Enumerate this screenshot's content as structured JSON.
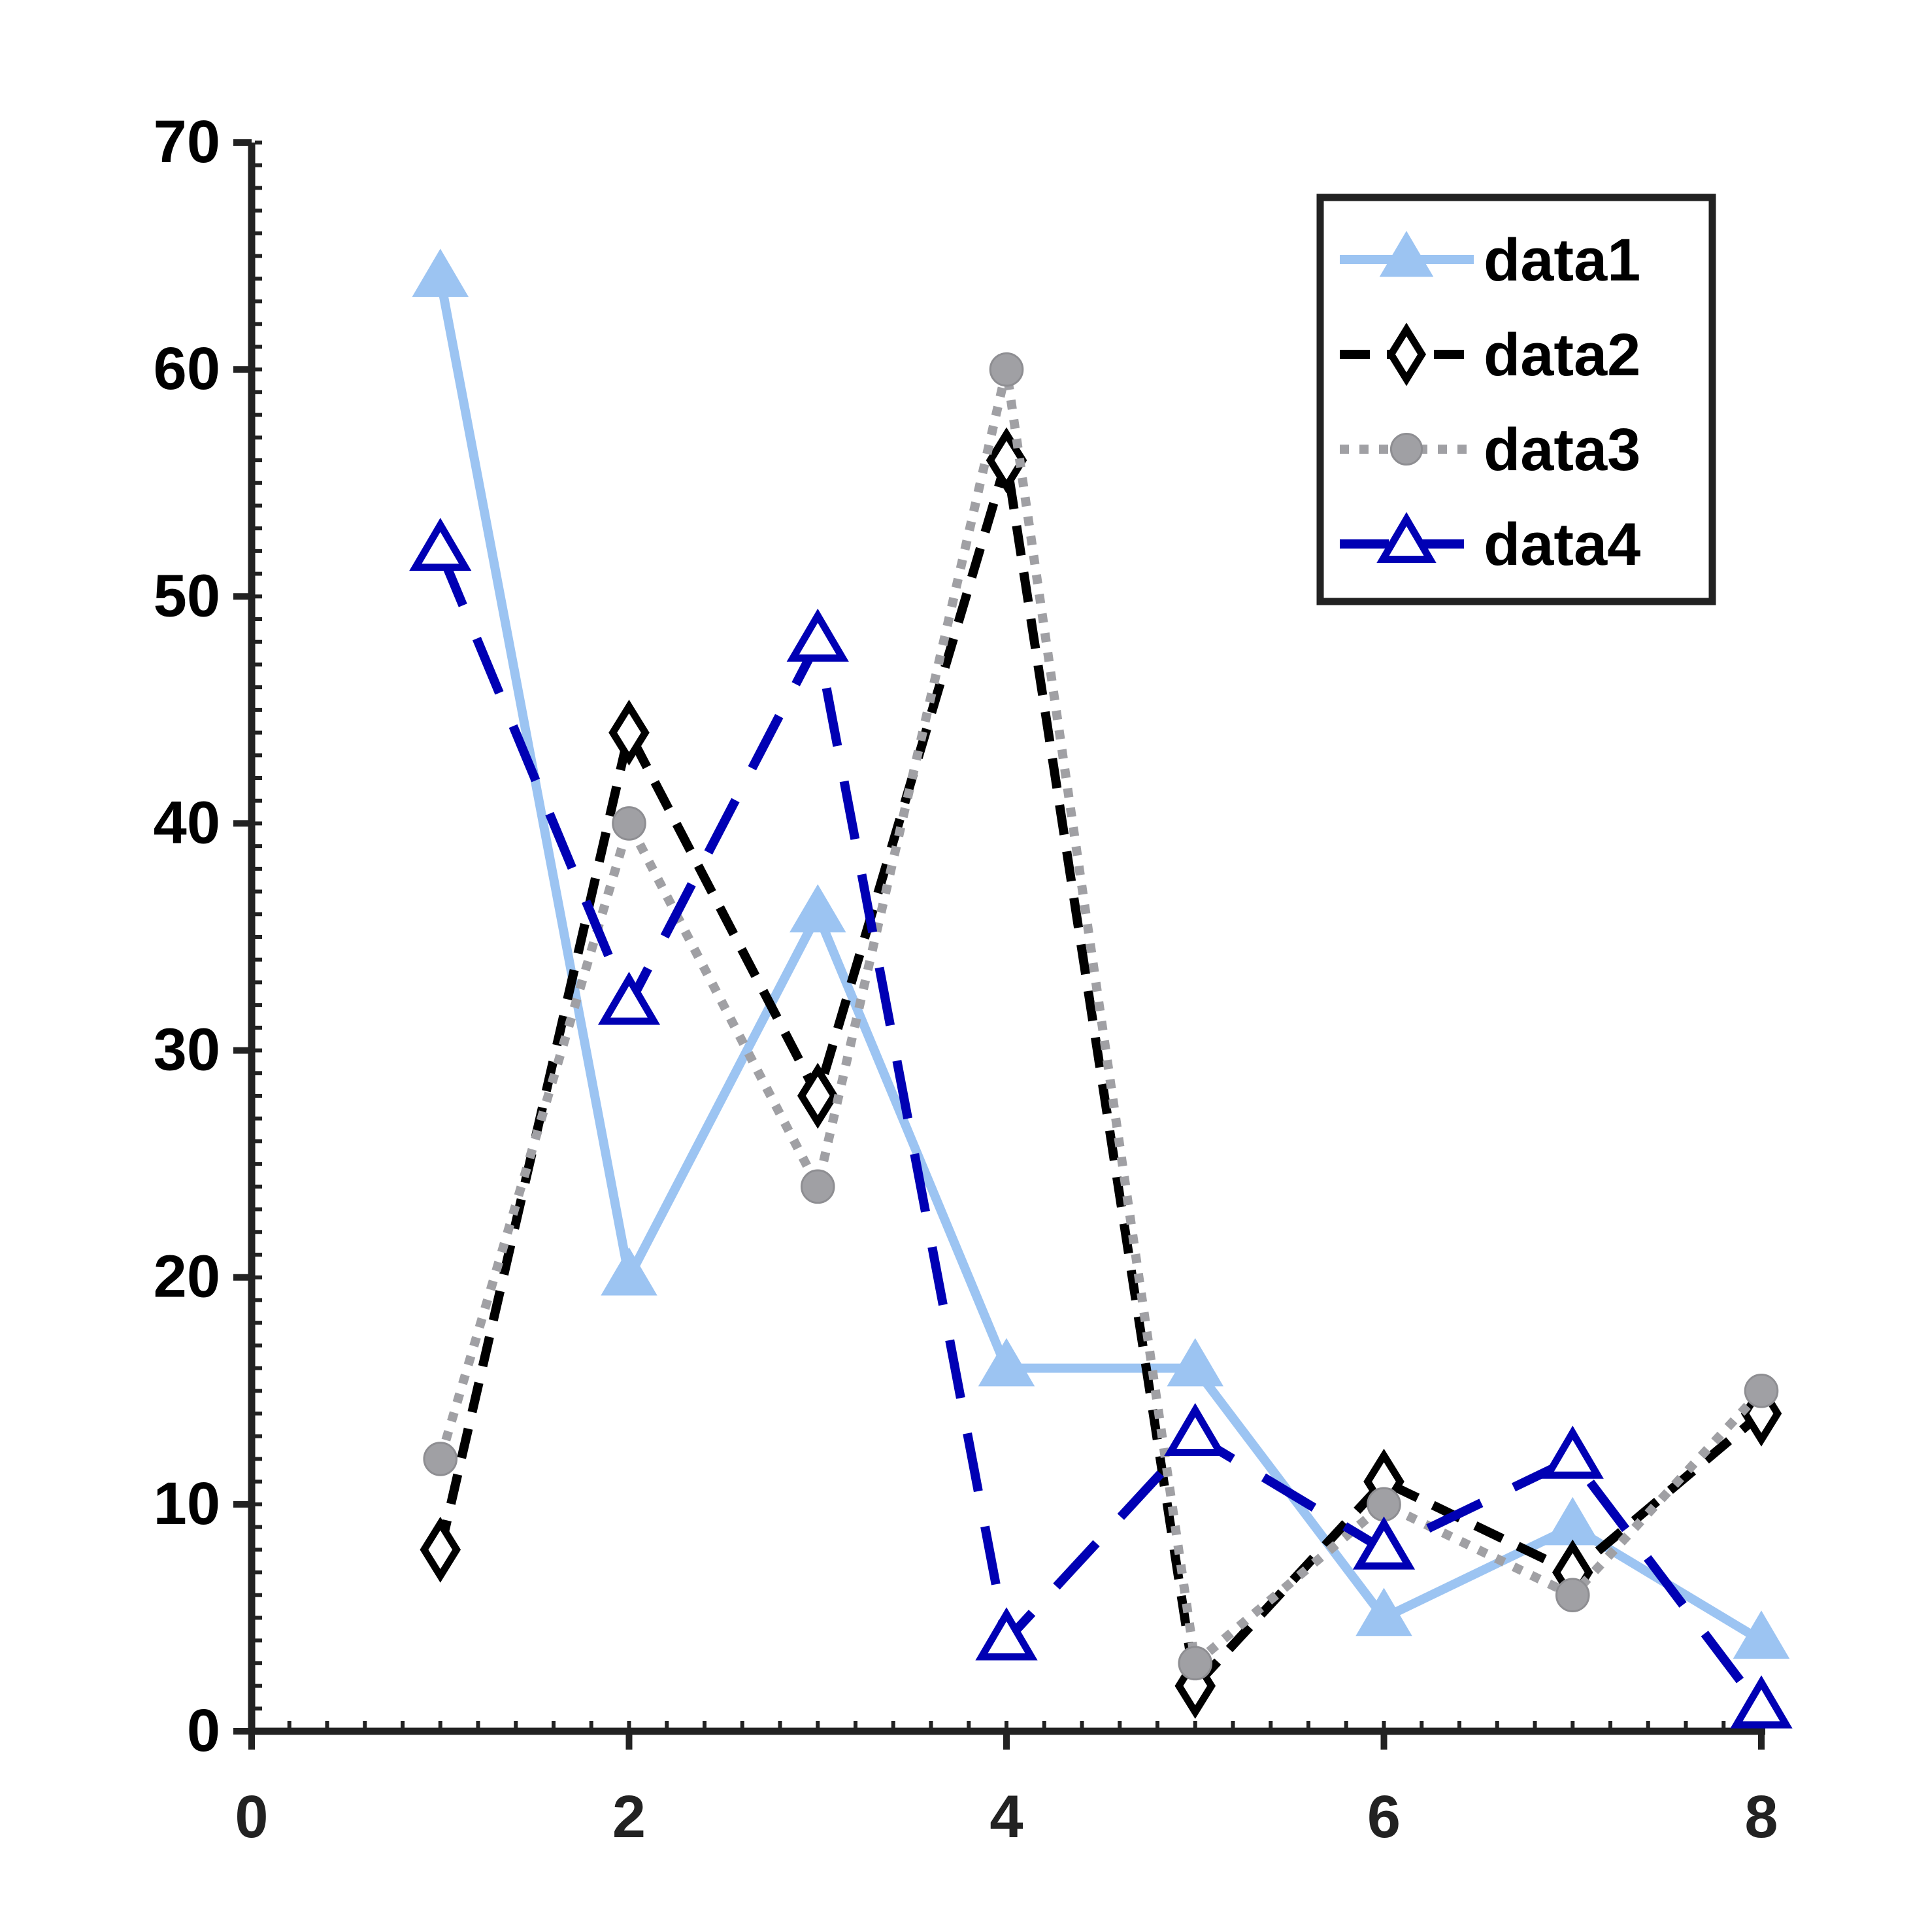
{
  "chart_data": {
    "type": "line",
    "title": "",
    "xlabel": "",
    "ylabel": "",
    "xlim": [
      0,
      8
    ],
    "ylim": [
      0,
      70
    ],
    "x_ticks": [
      0,
      2,
      4,
      6,
      8
    ],
    "y_ticks": [
      0,
      10,
      20,
      30,
      40,
      50,
      60,
      70
    ],
    "x_tick_labels": [
      "0",
      "2",
      "4",
      "6",
      "8"
    ],
    "y_tick_labels": [
      "0",
      "10",
      "20",
      "30",
      "40",
      "50",
      "60",
      "70"
    ],
    "grid": false,
    "legend_position": "top-right",
    "x": [
      1,
      2,
      3,
      4,
      5,
      6,
      7,
      8
    ],
    "series": [
      {
        "name": "data1",
        "values": [
          64,
          20,
          36,
          16,
          16,
          5,
          9,
          4
        ],
        "color": "#9cc4f2",
        "line": "solid",
        "marker": "triangle-filled"
      },
      {
        "name": "data2",
        "values": [
          8,
          44,
          28,
          56,
          2,
          11,
          7,
          14
        ],
        "color": "#000000",
        "line": "dashed",
        "marker": "diamond-open"
      },
      {
        "name": "data3",
        "values": [
          12,
          40,
          24,
          60,
          3,
          10,
          6,
          15
        ],
        "color": "#a0a0a4",
        "line": "dotted",
        "marker": "circle-filled"
      },
      {
        "name": "data4",
        "values": [
          52,
          32,
          48,
          4,
          13,
          8,
          12,
          1
        ],
        "color": "#0000b4",
        "line": "long-dashed",
        "marker": "triangle-open"
      }
    ]
  }
}
